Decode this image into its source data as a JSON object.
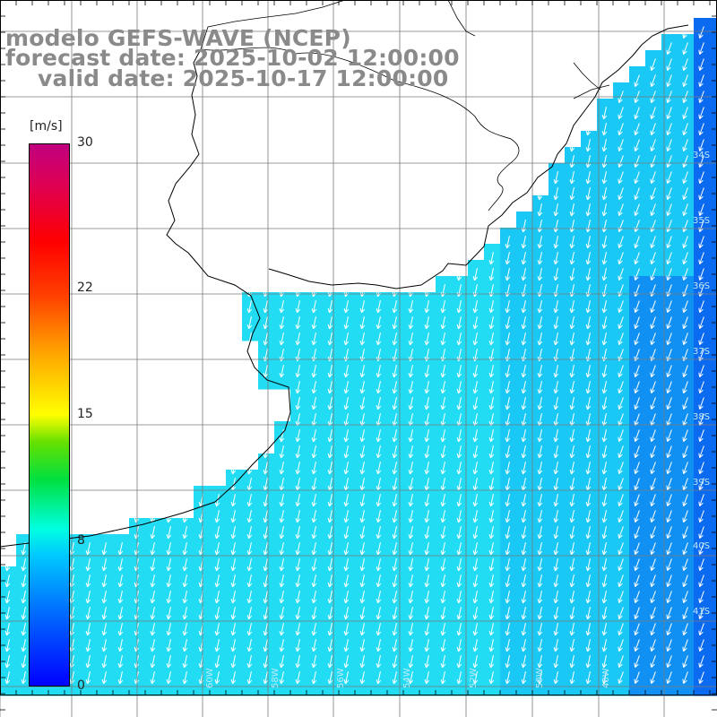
{
  "title": {
    "line1": "modelo GEFS-WAVE (NCEP)",
    "line2": "forecast date: 2025-10-02 12:00:00",
    "line3": "valid date: 2025-10-17 12:00:00"
  },
  "colorbar": {
    "unit": "[m/s]",
    "ticks": [
      {
        "value": 30,
        "label": "30"
      },
      {
        "value": 22,
        "label": "22"
      },
      {
        "value": 15,
        "label": "15"
      },
      {
        "value": 8,
        "label": "8"
      },
      {
        "value": 0,
        "label": "0"
      }
    ],
    "colors": [
      "#0000ff",
      "#0070ff",
      "#00c8ff",
      "#00ffe0",
      "#00e040",
      "#ffff00",
      "#ff4000",
      "#ff0000",
      "#c00080"
    ]
  },
  "map": {
    "lat_labels": [
      "34S",
      "35S",
      "36S",
      "37S",
      "38S",
      "39S",
      "40S",
      "41S"
    ],
    "lon_labels": [
      "60W",
      "58W",
      "56W",
      "54W",
      "52W",
      "50W",
      "48W"
    ],
    "ocean_colors": {
      "near": "#22dcf4",
      "mid": "#19c8f4",
      "far": "#1090f2",
      "edge": "#0a6af0"
    },
    "land_color": "#ffffff",
    "coast_color": "#000000",
    "grid_color": "#808080",
    "arrow_color": "#ffffff",
    "arrow_direction": "south-southwest"
  }
}
